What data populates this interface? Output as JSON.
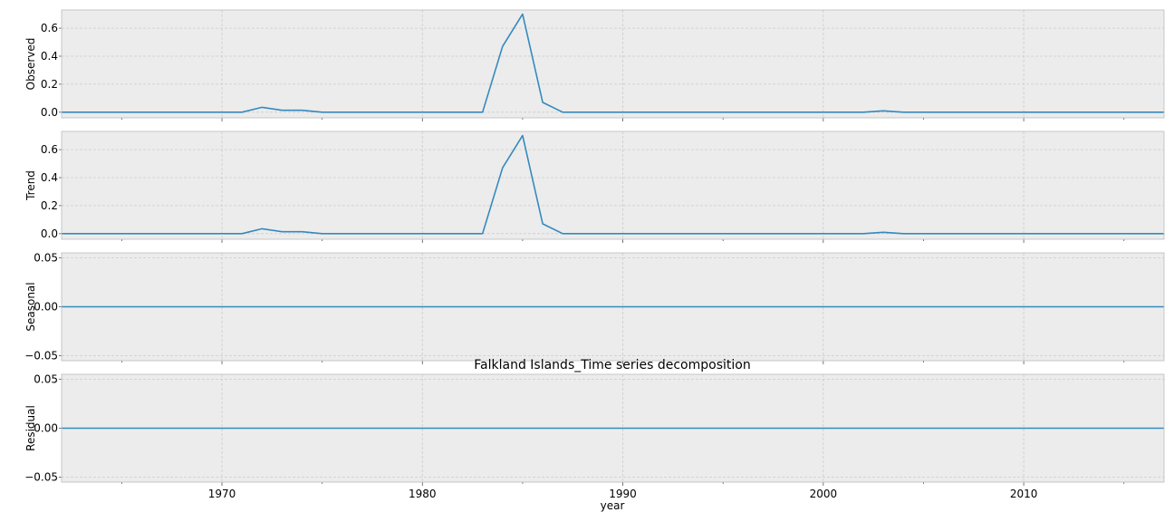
{
  "chart_data": {
    "type": "line",
    "title": "Falkland Islands_Time series decomposition",
    "xlabel": "year",
    "xlim": [
      1962,
      2017
    ],
    "x_ticks": [
      1970,
      1980,
      1990,
      2000,
      2010
    ],
    "grid": true,
    "line_color": "#348abd",
    "x": [
      1962,
      1963,
      1964,
      1965,
      1966,
      1967,
      1968,
      1969,
      1970,
      1971,
      1972,
      1973,
      1974,
      1975,
      1976,
      1977,
      1978,
      1979,
      1980,
      1981,
      1982,
      1983,
      1984,
      1985,
      1986,
      1987,
      1988,
      1989,
      1990,
      1991,
      1992,
      1993,
      1994,
      1995,
      1996,
      1997,
      1998,
      1999,
      2000,
      2001,
      2002,
      2003,
      2004,
      2005,
      2006,
      2007,
      2008,
      2009,
      2010,
      2011,
      2012,
      2013,
      2014,
      2015,
      2016,
      2017
    ],
    "panels": [
      {
        "ylabel": "Observed",
        "ylim": [
          -0.04,
          0.73
        ],
        "y_ticks": [
          "0.0",
          "0.2",
          "0.4",
          "0.6"
        ],
        "values": [
          0,
          0,
          0,
          0,
          0,
          0,
          0,
          0,
          0,
          0,
          0.035,
          0.014,
          0.014,
          0,
          0,
          0,
          0,
          0,
          0,
          0,
          0,
          0,
          0.47,
          0.7,
          0.07,
          0,
          0,
          0,
          0,
          0,
          0,
          0,
          0,
          0,
          0,
          0,
          0,
          0,
          0,
          0,
          0,
          0.01,
          0,
          0,
          0,
          0,
          0,
          0,
          0,
          0,
          0,
          0,
          0,
          0,
          0,
          0
        ]
      },
      {
        "ylabel": "Trend",
        "ylim": [
          -0.04,
          0.73
        ],
        "y_ticks": [
          "0.0",
          "0.2",
          "0.4",
          "0.6"
        ],
        "values": [
          0,
          0,
          0,
          0,
          0,
          0,
          0,
          0,
          0,
          0,
          0.035,
          0.014,
          0.014,
          0,
          0,
          0,
          0,
          0,
          0,
          0,
          0,
          0,
          0.47,
          0.7,
          0.07,
          0,
          0,
          0,
          0,
          0,
          0,
          0,
          0,
          0,
          0,
          0,
          0,
          0,
          0,
          0,
          0,
          0.01,
          0,
          0,
          0,
          0,
          0,
          0,
          0,
          0,
          0,
          0,
          0,
          0,
          0,
          0
        ]
      },
      {
        "ylabel": "Seasonal",
        "ylim": [
          -0.055,
          0.055
        ],
        "y_ticks": [
          "−0.05",
          "0.00",
          "0.05"
        ],
        "values": [
          0,
          0,
          0,
          0,
          0,
          0,
          0,
          0,
          0,
          0,
          0,
          0,
          0,
          0,
          0,
          0,
          0,
          0,
          0,
          0,
          0,
          0,
          0,
          0,
          0,
          0,
          0,
          0,
          0,
          0,
          0,
          0,
          0,
          0,
          0,
          0,
          0,
          0,
          0,
          0,
          0,
          0,
          0,
          0,
          0,
          0,
          0,
          0,
          0,
          0,
          0,
          0,
          0,
          0,
          0,
          0
        ]
      },
      {
        "ylabel": "Residual",
        "ylim": [
          -0.055,
          0.055
        ],
        "y_ticks": [
          "−0.05",
          "0.00",
          "0.05"
        ],
        "values": [
          0,
          0,
          0,
          0,
          0,
          0,
          0,
          0,
          0,
          0,
          0,
          0,
          0,
          0,
          0,
          0,
          0,
          0,
          0,
          0,
          0,
          0,
          0,
          0,
          0,
          0,
          0,
          0,
          0,
          0,
          0,
          0,
          0,
          0,
          0,
          0,
          0,
          0,
          0,
          0,
          0,
          0,
          0,
          0,
          0,
          0,
          0,
          0,
          0,
          0,
          0,
          0,
          0,
          0,
          0,
          0
        ]
      }
    ]
  }
}
